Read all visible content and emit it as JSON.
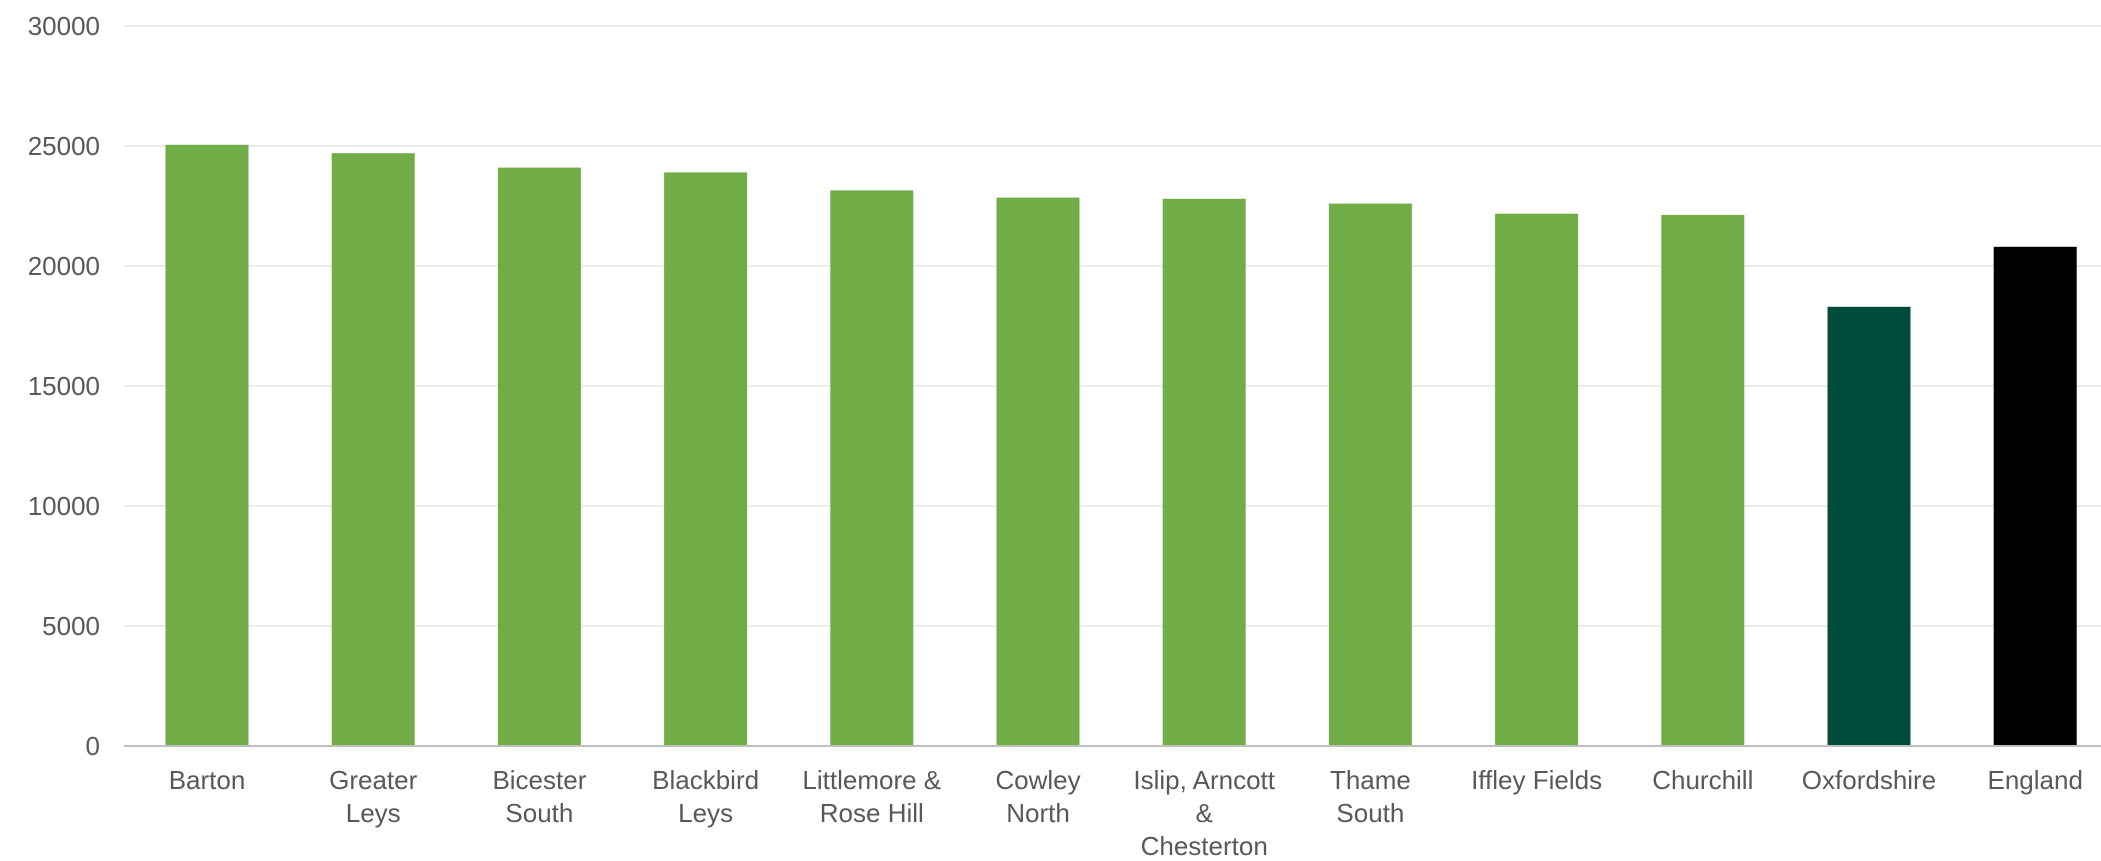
{
  "chart_data": {
    "type": "bar",
    "title": "",
    "xlabel": "",
    "ylabel": "",
    "ylim": [
      0,
      30000
    ],
    "yticks": [
      0,
      5000,
      10000,
      15000,
      20000,
      25000,
      30000
    ],
    "grid": true,
    "legend": "none",
    "categories": [
      [
        "Barton"
      ],
      [
        "Greater",
        "Leys"
      ],
      [
        "Bicester",
        "South"
      ],
      [
        "Blackbird",
        "Leys"
      ],
      [
        "Littlemore &",
        "Rose Hill"
      ],
      [
        "Cowley",
        "North"
      ],
      [
        "Islip, Arncott",
        "&",
        "Chesterton"
      ],
      [
        "Thame",
        "South"
      ],
      [
        "Iffley Fields"
      ],
      [
        "Churchill"
      ],
      [
        "Oxfordshire"
      ],
      [
        "England"
      ]
    ],
    "values": [
      25050,
      24700,
      24100,
      23900,
      23150,
      22850,
      22800,
      22600,
      22180,
      22130,
      18300,
      20800
    ],
    "colors": [
      "#70ad47",
      "#70ad47",
      "#70ad47",
      "#70ad47",
      "#70ad47",
      "#70ad47",
      "#70ad47",
      "#70ad47",
      "#70ad47",
      "#70ad47",
      "#004b3c",
      "#000000"
    ]
  }
}
